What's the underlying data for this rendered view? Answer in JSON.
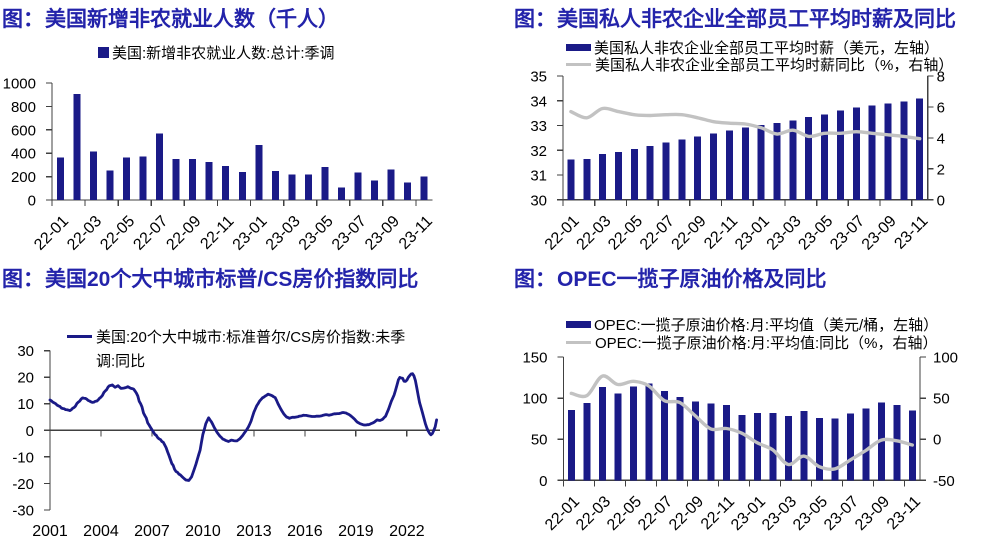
{
  "page": {
    "background": "#ffffff"
  },
  "theme": {
    "navy": "#1a1a87",
    "title_blue": "#2323aa",
    "gray_line": "#c2c2c2",
    "axis_color": "#404040",
    "zero_line_color": "#8c8c8c",
    "label_color": "#000000"
  },
  "chart_data": [
    {
      "type": "bar",
      "title_prefix": "图：",
      "title": "美国新增非农就业人数（千人）",
      "categories": [
        "22-01",
        "22-02",
        "22-03",
        "22-04",
        "22-05",
        "22-06",
        "22-07",
        "22-08",
        "22-09",
        "22-10",
        "22-11",
        "22-12",
        "23-01",
        "23-02",
        "23-03",
        "23-04",
        "23-05",
        "23-06",
        "23-07",
        "23-08",
        "23-09",
        "23-10",
        "23-11"
      ],
      "x_tick_labels": [
        "22-01",
        "22-03",
        "22-05",
        "22-07",
        "22-09",
        "22-11",
        "23-01",
        "23-03",
        "23-05",
        "23-07",
        "23-09",
        "23-11"
      ],
      "series": [
        {
          "name": "美国:新增非农就业人数:总计:季调",
          "type": "bar",
          "axis": "left",
          "values": [
            364,
            904,
            414,
            254,
            364,
            370,
            568,
            352,
            350,
            324,
            290,
            239,
            472,
            248,
            217,
            217,
            281,
            105,
            236,
            165,
            262,
            150,
            199
          ]
        }
      ],
      "left_axis": {
        "min": 0,
        "max": 1000,
        "step": 200
      },
      "legend_position": "top"
    },
    {
      "type": "combo",
      "title_prefix": "图：",
      "title": "美国私人非农企业全部员工平均时薪及同比",
      "categories": [
        "22-01",
        "22-02",
        "22-03",
        "22-04",
        "22-05",
        "22-06",
        "22-07",
        "22-08",
        "22-09",
        "22-10",
        "22-11",
        "22-12",
        "23-01",
        "23-02",
        "23-03",
        "23-04",
        "23-05",
        "23-06",
        "23-07",
        "23-08",
        "23-09",
        "23-10",
        "23-11"
      ],
      "x_tick_labels": [
        "22-01",
        "22-03",
        "22-05",
        "22-07",
        "22-09",
        "22-11",
        "23-01",
        "23-03",
        "23-05",
        "23-07",
        "23-09",
        "23-11"
      ],
      "series": [
        {
          "name": "美国私人非农企业全部员工平均时薪（美元，左轴）",
          "type": "bar",
          "axis": "left",
          "values": [
            31.63,
            31.65,
            31.85,
            31.93,
            32.05,
            32.17,
            32.32,
            32.44,
            32.55,
            32.67,
            32.8,
            32.92,
            33.02,
            33.1,
            33.2,
            33.35,
            33.45,
            33.61,
            33.73,
            33.81,
            33.89,
            33.98,
            34.1
          ]
        },
        {
          "name": "美国私人非农企业全部员工平均时薪同比（%，右轴）",
          "type": "line",
          "axis": "right",
          "values": [
            5.7,
            5.3,
            5.9,
            5.7,
            5.5,
            5.45,
            5.5,
            5.5,
            5.3,
            5.05,
            4.95,
            4.9,
            4.65,
            4.25,
            4.5,
            4.1,
            4.3,
            4.3,
            4.4,
            4.3,
            4.2,
            4.1,
            3.95
          ]
        }
      ],
      "left_axis": {
        "min": 30,
        "max": 35,
        "step": 1
      },
      "right_axis": {
        "min": 0,
        "max": 8,
        "step": 2
      },
      "legend_position": "top"
    },
    {
      "type": "line",
      "title_prefix": "图：",
      "title": "美国20个大中城市标普/CS房价指数同比",
      "series": [
        {
          "name": "美国:20个大中城市:标准普尔/CS房价指数:未季调:同比",
          "legend_lines": [
            "美国:20个大中城市:标准普尔/CS房价指数:未季",
            "调:同比"
          ],
          "type": "line",
          "axis": "left",
          "x_start_year": 2001.0,
          "x_step_months": 1,
          "values": [
            11.4,
            11.1,
            10.6,
            10.3,
            10.0,
            9.5,
            9.2,
            9.0,
            8.4,
            8.2,
            8.1,
            7.8,
            7.7,
            7.6,
            7.4,
            7.7,
            8.3,
            8.6,
            9.1,
            10.1,
            10.6,
            11.0,
            11.8,
            12.2,
            12.1,
            12.0,
            11.7,
            11.2,
            11.0,
            10.7,
            10.5,
            10.6,
            10.9,
            11.0,
            11.4,
            12.1,
            12.5,
            13.1,
            14.2,
            14.8,
            15.3,
            16.3,
            16.8,
            16.9,
            17.1,
            16.6,
            16.2,
            16.5,
            16.8,
            16.3,
            15.8,
            15.8,
            15.9,
            16.0,
            16.2,
            16.4,
            16.1,
            15.8,
            15.7,
            15.5,
            14.8,
            14.0,
            12.9,
            10.9,
            10.0,
            8.8,
            6.5,
            5.5,
            4.6,
            2.8,
            2.0,
            1.1,
            0.2,
            -0.6,
            -1.5,
            -1.9,
            -2.7,
            -3.2,
            -3.5,
            -4.2,
            -4.5,
            -5.5,
            -6.5,
            -8.0,
            -9.5,
            -11.0,
            -12.5,
            -13.2,
            -14.7,
            -15.5,
            -15.8,
            -16.5,
            -16.8,
            -17.3,
            -17.8,
            -18.3,
            -18.7,
            -18.8,
            -18.9,
            -18.2,
            -17.5,
            -16.0,
            -14.5,
            -12.8,
            -11.0,
            -9.2,
            -7.5,
            -4.4,
            -1.5,
            0.4,
            2.5,
            3.6,
            4.7,
            3.9,
            3.2,
            2.1,
            1.0,
            0.1,
            -0.8,
            -1.5,
            -2.2,
            -2.7,
            -3.3,
            -3.5,
            -3.8,
            -4.0,
            -4.2,
            -4.0,
            -3.7,
            -3.8,
            -3.9,
            -4.0,
            -4.0,
            -3.6,
            -3.2,
            -2.6,
            -2.0,
            -1.2,
            -0.5,
            0.3,
            1.2,
            2.3,
            3.5,
            5.2,
            6.8,
            8.0,
            9.3,
            10.1,
            11.0,
            11.6,
            12.2,
            12.5,
            12.9,
            13.2,
            13.6,
            13.4,
            13.2,
            13.0,
            12.6,
            12.3,
            11.2,
            10.0,
            9.0,
            8.0,
            7.1,
            6.2,
            5.6,
            5.0,
            4.8,
            4.5,
            4.7,
            4.9,
            4.9,
            4.9,
            5.0,
            5.1,
            5.3,
            5.4,
            5.5,
            5.7,
            5.6,
            5.6,
            5.5,
            5.4,
            5.3,
            5.2,
            5.2,
            5.2,
            5.3,
            5.3,
            5.3,
            5.4,
            5.5,
            5.7,
            5.8,
            5.9,
            5.8,
            5.7,
            5.8,
            5.9,
            6.1,
            6.2,
            6.2,
            6.3,
            6.3,
            6.4,
            6.6,
            6.7,
            6.6,
            6.5,
            6.2,
            6.0,
            5.6,
            5.2,
            4.7,
            4.2,
            3.6,
            3.1,
            2.8,
            2.5,
            2.3,
            2.1,
            2.0,
            2.0,
            2.1,
            2.1,
            2.3,
            2.6,
            2.8,
            3.1,
            3.5,
            3.9,
            3.8,
            3.7,
            3.9,
            4.2,
            4.8,
            5.3,
            6.6,
            7.9,
            9.4,
            10.9,
            12.1,
            13.3,
            15.0,
            16.9,
            19.0,
            19.9,
            19.7,
            19.6,
            18.5,
            18.4,
            18.9,
            19.9,
            20.6,
            21.2,
            21.3,
            20.5,
            18.7,
            16.0,
            13.1,
            10.4,
            8.6,
            6.7,
            4.6,
            2.6,
            1.0,
            -0.2,
            -1.1,
            -1.7,
            -1.2,
            0.0,
            1.3,
            3.9
          ]
        }
      ],
      "left_axis": {
        "min": -30,
        "max": 30,
        "step": 10
      },
      "x_axis": {
        "tick_years": [
          2001,
          2004,
          2007,
          2010,
          2013,
          2016,
          2019,
          2022
        ],
        "min": 2001.0,
        "max": 2023.95
      },
      "zero_line": true,
      "legend_position": "top"
    },
    {
      "type": "combo",
      "title_prefix": "图：",
      "title": "OPEC一揽子原油价格及同比",
      "categories": [
        "22-01",
        "22-02",
        "22-03",
        "22-04",
        "22-05",
        "22-06",
        "22-07",
        "22-08",
        "22-09",
        "22-10",
        "22-11",
        "22-12",
        "23-01",
        "23-02",
        "23-03",
        "23-04",
        "23-05",
        "23-06",
        "23-07",
        "23-08",
        "23-09",
        "23-10",
        "23-11"
      ],
      "x_tick_labels": [
        "22-01",
        "22-03",
        "22-05",
        "22-07",
        "22-09",
        "22-11",
        "23-01",
        "23-03",
        "23-05",
        "23-07",
        "23-09",
        "23-11"
      ],
      "series": [
        {
          "name": "OPEC:一揽子原油价格:月:平均值（美元/桶，左轴）",
          "type": "bar",
          "axis": "left",
          "values": [
            85.4,
            94.1,
            113.5,
            105.9,
            113.9,
            117.7,
            108.5,
            101.2,
            95.7,
            93.6,
            91.4,
            79.7,
            81.6,
            81.9,
            78.5,
            84.1,
            75.8,
            75.2,
            81.1,
            87.3,
            94.6,
            91.8,
            84.9
          ]
        },
        {
          "name": "OPEC:一揽子原油价格:月:平均值:同比（%，右轴）",
          "type": "line",
          "axis": "right",
          "values": [
            55.9,
            53.0,
            76.8,
            66.5,
            70.4,
            64.9,
            47.0,
            44.6,
            28.5,
            12.5,
            13.0,
            7.3,
            -4.4,
            -13.0,
            -30.8,
            -20.6,
            -33.4,
            -36.1,
            -25.3,
            -13.7,
            -1.1,
            -1.9,
            -7.1
          ]
        }
      ],
      "left_axis": {
        "min": 0,
        "max": 150,
        "step": 50
      },
      "right_axis": {
        "min": -50,
        "max": 100,
        "step": 50
      },
      "legend_position": "top"
    }
  ]
}
